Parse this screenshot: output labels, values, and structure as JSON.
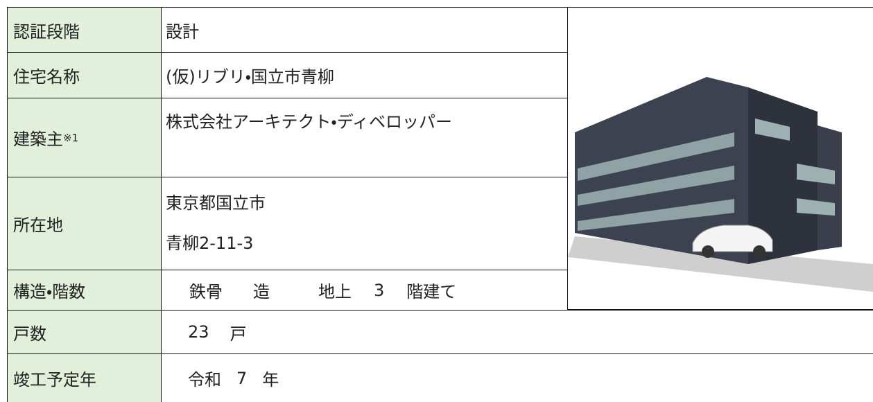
{
  "table": {
    "rows": [
      {
        "label": "認証段階",
        "value": "設計"
      },
      {
        "label": "住宅名称",
        "value": "(仮)リブリ・国立市青柳"
      },
      {
        "label": "建築主",
        "label_note": "※1",
        "value": "株式会社アーキテクト・ディベロッパー"
      },
      {
        "label": "所在地",
        "value_lines": [
          "東京都国立市",
          "青柳2-11-3"
        ]
      },
      {
        "label": "構造・階数",
        "value_parts": [
          "鉄骨",
          "造",
          "地上",
          "3",
          "階建て"
        ]
      },
      {
        "label": "戸数",
        "value_parts": [
          "23",
          "戸"
        ]
      },
      {
        "label": "竣工予定年",
        "value_parts": [
          "令和",
          "7",
          "年"
        ]
      }
    ]
  }
}
